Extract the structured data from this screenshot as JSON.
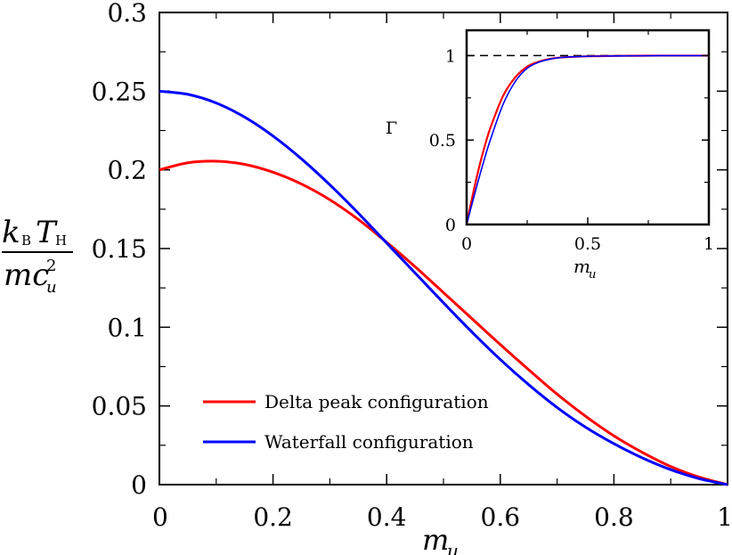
{
  "chart_data": [
    {
      "type": "line",
      "xlabel": "m_u",
      "ylabel": "k_B T_H / (m c_u^2)",
      "xlim": [
        0,
        1
      ],
      "ylim": [
        0,
        0.3
      ],
      "x_ticks": [
        "0",
        "0.2",
        "0.4",
        "0.6",
        "0.8",
        "1"
      ],
      "y_ticks": [
        "0",
        "0.05",
        "0.1",
        "0.15",
        "0.2",
        "0.25",
        "0.3"
      ],
      "x_tick_values": [
        0,
        0.2,
        0.4,
        0.6,
        0.8,
        1
      ],
      "y_tick_values": [
        0,
        0.05,
        0.1,
        0.15,
        0.2,
        0.25,
        0.3
      ],
      "legend_position": "lower-left",
      "series": [
        {
          "name": "Delta peak configuration",
          "color": "#ff0000",
          "x": [
            0,
            0.05,
            0.1,
            0.15,
            0.2,
            0.25,
            0.3,
            0.35,
            0.4,
            0.45,
            0.5,
            0.55,
            0.6,
            0.65,
            0.7,
            0.75,
            0.8,
            0.85,
            0.9,
            0.95,
            1.0
          ],
          "values": [
            0.2,
            0.2045,
            0.2055,
            0.2035,
            0.1985,
            0.191,
            0.181,
            0.1685,
            0.154,
            0.1385,
            0.122,
            0.1055,
            0.089,
            0.073,
            0.0575,
            0.0435,
            0.031,
            0.0205,
            0.0115,
            0.0048,
            0.0
          ]
        },
        {
          "name": "Waterfall configuration",
          "color": "#0000ff",
          "x": [
            0,
            0.05,
            0.1,
            0.15,
            0.2,
            0.25,
            0.3,
            0.35,
            0.4,
            0.45,
            0.5,
            0.55,
            0.6,
            0.65,
            0.7,
            0.75,
            0.8,
            0.85,
            0.9,
            0.95,
            1.0
          ],
          "values": [
            0.25,
            0.248,
            0.2425,
            0.2335,
            0.2215,
            0.207,
            0.1905,
            0.1725,
            0.1535,
            0.1345,
            0.1155,
            0.097,
            0.0795,
            0.0635,
            0.049,
            0.0365,
            0.026,
            0.017,
            0.0095,
            0.0038,
            0.0
          ]
        }
      ]
    },
    {
      "type": "line",
      "xlabel": "m_u",
      "ylabel": "Γ",
      "xlim": [
        0,
        1
      ],
      "ylim": [
        0,
        1.15
      ],
      "x_ticks": [
        "0",
        "0.5",
        "1"
      ],
      "y_ticks": [
        "0",
        "0.5",
        "1"
      ],
      "x_tick_values": [
        0,
        0.5,
        1
      ],
      "y_tick_values": [
        0,
        0.5,
        1
      ],
      "reference_line": {
        "y": 1,
        "style": "dashed",
        "color": "#000000"
      },
      "series": [
        {
          "color": "#ff0000",
          "x": [
            0,
            0.02,
            0.05,
            0.08,
            0.1,
            0.15,
            0.2,
            0.25,
            0.3,
            0.35,
            0.4,
            0.5,
            0.6,
            0.7,
            0.8,
            0.9,
            1.0
          ],
          "values": [
            0,
            0.14,
            0.33,
            0.49,
            0.58,
            0.76,
            0.87,
            0.935,
            0.965,
            0.982,
            0.99,
            0.996,
            0.998,
            0.999,
            1.0,
            1.0,
            1.0
          ]
        },
        {
          "color": "#0000ff",
          "x": [
            0,
            0.02,
            0.05,
            0.08,
            0.1,
            0.15,
            0.2,
            0.25,
            0.3,
            0.35,
            0.4,
            0.5,
            0.6,
            0.7,
            0.8,
            0.9,
            1.0
          ],
          "values": [
            0,
            0.11,
            0.27,
            0.42,
            0.51,
            0.71,
            0.845,
            0.925,
            0.962,
            0.981,
            0.99,
            0.996,
            0.998,
            0.999,
            1.0,
            1.0,
            1.0
          ]
        }
      ]
    }
  ],
  "labels": {
    "xlabel_main_base": "m",
    "xlabel_main_sub": "u",
    "ylabel_num_k": "k",
    "ylabel_num_k_sub": "B",
    "ylabel_num_T": "T",
    "ylabel_num_T_sub": "H",
    "ylabel_den_m": "mc",
    "ylabel_den_sup": "2",
    "ylabel_den_sub": "u",
    "inset_ylabel": "Γ",
    "inset_xlabel_base": "m",
    "inset_xlabel_sub": "u",
    "legend_delta": "Delta peak configuration",
    "legend_waterfall": "Waterfall configuration"
  }
}
